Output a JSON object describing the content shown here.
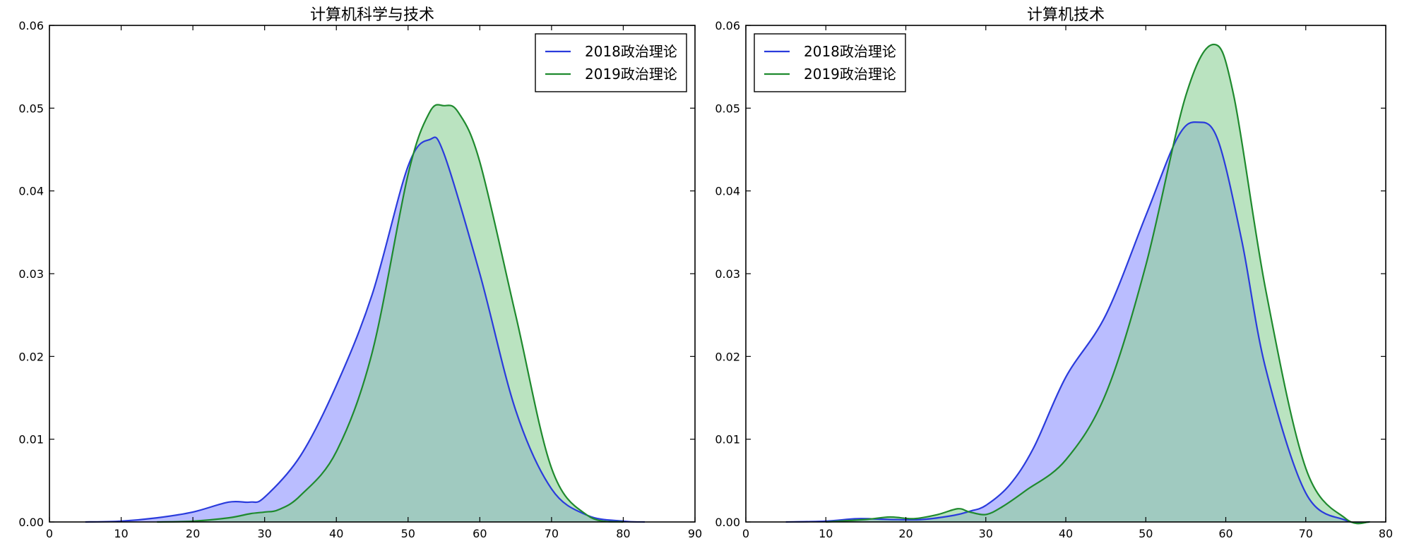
{
  "colors": {
    "series_2018": "#2a3bdc",
    "series_2019": "#1f8a2e",
    "fill_2018": "#8f94ff",
    "fill_2019": "#8fd29a",
    "axis": "#000000",
    "background": "#ffffff"
  },
  "chart_data": [
    {
      "type": "area",
      "title": "计算机科学与技术",
      "xlabel": "",
      "ylabel": "",
      "xlim": [
        0,
        90
      ],
      "ylim": [
        0,
        0.06
      ],
      "xticks": [
        0,
        10,
        20,
        30,
        40,
        50,
        60,
        70,
        80,
        90
      ],
      "xtick_labels": [
        "0",
        "10",
        "20",
        "30",
        "40",
        "50",
        "60",
        "70",
        "80",
        "90"
      ],
      "yticks": [
        0,
        0.01,
        0.02,
        0.03,
        0.04,
        0.05,
        0.06
      ],
      "ytick_labels": [
        "0.00",
        "0.01",
        "0.02",
        "0.03",
        "0.04",
        "0.05",
        "0.06"
      ],
      "legend_position": "top-right",
      "series": [
        {
          "name": "2018政治理论",
          "x": [
            5,
            10,
            15,
            20,
            25,
            28,
            30,
            35,
            40,
            45,
            50,
            53,
            55,
            60,
            65,
            70,
            75,
            80,
            83
          ],
          "y": [
            0,
            0.0001,
            0.0005,
            0.0012,
            0.0024,
            0.0024,
            0.003,
            0.008,
            0.0165,
            0.0275,
            0.043,
            0.0462,
            0.0445,
            0.03,
            0.0135,
            0.004,
            0.0008,
            0.0001,
            0
          ]
        },
        {
          "name": "2019政治理论",
          "x": [
            15,
            20,
            25,
            28,
            30,
            32,
            35,
            40,
            45,
            50,
            53,
            55,
            57,
            60,
            65,
            70,
            75,
            80
          ],
          "y": [
            0,
            0.0001,
            0.0005,
            0.001,
            0.0012,
            0.0015,
            0.0032,
            0.0085,
            0.0205,
            0.042,
            0.0495,
            0.0503,
            0.0495,
            0.0435,
            0.025,
            0.0065,
            0.0008,
            0
          ]
        }
      ]
    },
    {
      "type": "area",
      "title": "计算机技术",
      "xlabel": "",
      "ylabel": "",
      "xlim": [
        0,
        80
      ],
      "ylim": [
        0,
        0.06
      ],
      "xticks": [
        0,
        10,
        20,
        30,
        40,
        50,
        60,
        70,
        80
      ],
      "xtick_labels": [
        "0",
        "10",
        "20",
        "30",
        "40",
        "50",
        "60",
        "70",
        "80"
      ],
      "yticks": [
        0,
        0.01,
        0.02,
        0.03,
        0.04,
        0.05,
        0.06
      ],
      "ytick_labels": [
        "0.00",
        "0.01",
        "0.02",
        "0.03",
        "0.04",
        "0.05",
        "0.06"
      ],
      "legend_position": "top-left",
      "series": [
        {
          "name": "2018政治理论",
          "x": [
            5,
            10,
            14,
            18,
            22,
            26,
            28,
            30,
            33,
            36,
            40,
            45,
            50,
            54,
            56.5,
            59,
            62,
            65,
            70,
            75,
            78
          ],
          "y": [
            0,
            0.0001,
            0.0004,
            0.0003,
            0.0003,
            0.0008,
            0.0013,
            0.002,
            0.0045,
            0.009,
            0.0175,
            0.025,
            0.037,
            0.0465,
            0.0483,
            0.0462,
            0.034,
            0.0185,
            0.0035,
            0.0002,
            0
          ]
        },
        {
          "name": "2019政治理论",
          "x": [
            10,
            15,
            18,
            21,
            24,
            26.5,
            28,
            30,
            32,
            35,
            40,
            45,
            50,
            55,
            58.5,
            61,
            65,
            70,
            75,
            78
          ],
          "y": [
            0,
            0.0003,
            0.0006,
            0.0004,
            0.0009,
            0.0016,
            0.0012,
            0.0009,
            0.0018,
            0.0038,
            0.0075,
            0.0155,
            0.031,
            0.0515,
            0.0577,
            0.0515,
            0.028,
            0.0065,
            0.0004,
            0
          ]
        }
      ]
    }
  ]
}
